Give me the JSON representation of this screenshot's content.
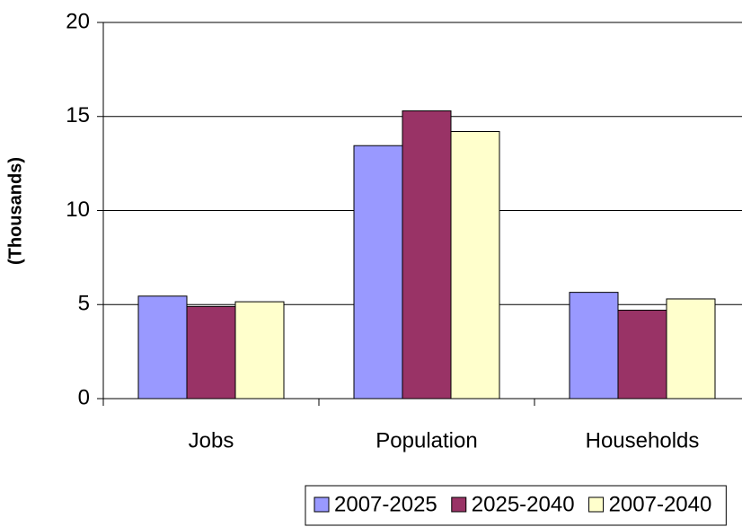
{
  "chart_data": {
    "type": "bar",
    "y_label": "(Thousands)",
    "categories": [
      "Jobs",
      "Population",
      "Households"
    ],
    "series": [
      {
        "name": "2007-2025",
        "color": "#9999ff",
        "values": [
          5.45,
          13.45,
          5.65
        ]
      },
      {
        "name": "2025-2040",
        "color": "#993366",
        "values": [
          4.9,
          15.3,
          4.7
        ]
      },
      {
        "name": "2007-2040",
        "color": "#ffffcc",
        "values": [
          5.15,
          14.2,
          5.3
        ]
      }
    ],
    "ylim": [
      0,
      20
    ],
    "yticks": [
      0,
      5,
      10,
      15,
      20
    ],
    "grid": true,
    "legend": "bottom"
  }
}
